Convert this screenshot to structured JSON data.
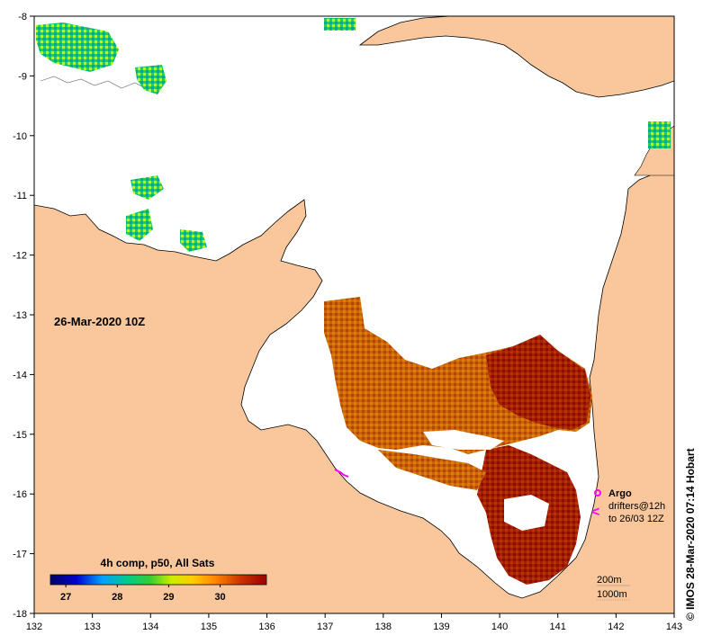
{
  "map": {
    "timestamp_label": "26-Mar-2020 10Z",
    "credit": "© IMOS 28-Mar-2020 07:14 Hobart",
    "x_ticks": [
      "132",
      "133",
      "134",
      "135",
      "136",
      "137",
      "138",
      "139",
      "140",
      "141",
      "142",
      "143"
    ],
    "y_ticks": [
      "-8",
      "-9",
      "-10",
      "-11",
      "-12",
      "-13",
      "-14",
      "-15",
      "-16",
      "-17",
      "-18"
    ],
    "lon_range": [
      132,
      143
    ],
    "lat_range": [
      -18,
      -8
    ],
    "colors": {
      "land": "#f9c79b",
      "ocean": "#ffffff",
      "argo": "#ff00ff"
    }
  },
  "colorbar": {
    "title": "4h comp, p50, All Sats",
    "ticks": [
      "27",
      "28",
      "29",
      "30"
    ],
    "range": [
      26.7,
      30.9
    ],
    "stops": [
      "#000066",
      "#0000cc",
      "#00a0ff",
      "#00cc88",
      "#33cc33",
      "#ccee00",
      "#ffcc00",
      "#ff8800",
      "#cc3300",
      "#990000"
    ]
  },
  "legend": {
    "argo_label": "Argo",
    "drifters_label_1": "drifters@12h",
    "drifters_label_2": "to 26/03 12Z",
    "drifter_symbol": "<",
    "depth_200": "200m",
    "depth_1000": "1000m"
  }
}
